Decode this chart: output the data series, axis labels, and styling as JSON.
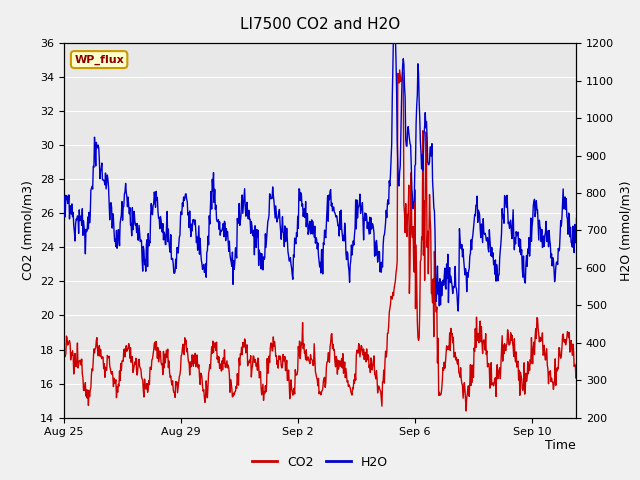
{
  "title": "LI7500 CO2 and H2O",
  "xlabel": "Time",
  "ylabel_left": "CO2 (mmol/m3)",
  "ylabel_right": "H2O (mmol/m3)",
  "ylim_left": [
    14,
    36
  ],
  "ylim_right": [
    200,
    1200
  ],
  "yticks_left": [
    14,
    16,
    18,
    20,
    22,
    24,
    26,
    28,
    30,
    32,
    34,
    36
  ],
  "yticks_right": [
    200,
    300,
    400,
    500,
    600,
    700,
    800,
    900,
    1000,
    1100,
    1200
  ],
  "fig_bg_color": "#f0f0f0",
  "plot_bg_color": "#e8e8e8",
  "co2_color": "#cc0000",
  "h2o_color": "#0000cc",
  "line_width": 1.0,
  "title_fontsize": 11,
  "axis_fontsize": 9,
  "tick_fontsize": 8,
  "legend_label_co2": "CO2",
  "legend_label_h2o": "H2O",
  "watermark_text": "WP_flux",
  "watermark_bg": "#ffffcc",
  "watermark_border": "#cc9900",
  "xlim": [
    0,
    17.5
  ],
  "xtick_positions_days": [
    0,
    4,
    8,
    12,
    16
  ],
  "xtick_dates": [
    "Aug 25",
    "Aug 29",
    "Sep 2",
    "Sep 6",
    "Sep 10"
  ]
}
